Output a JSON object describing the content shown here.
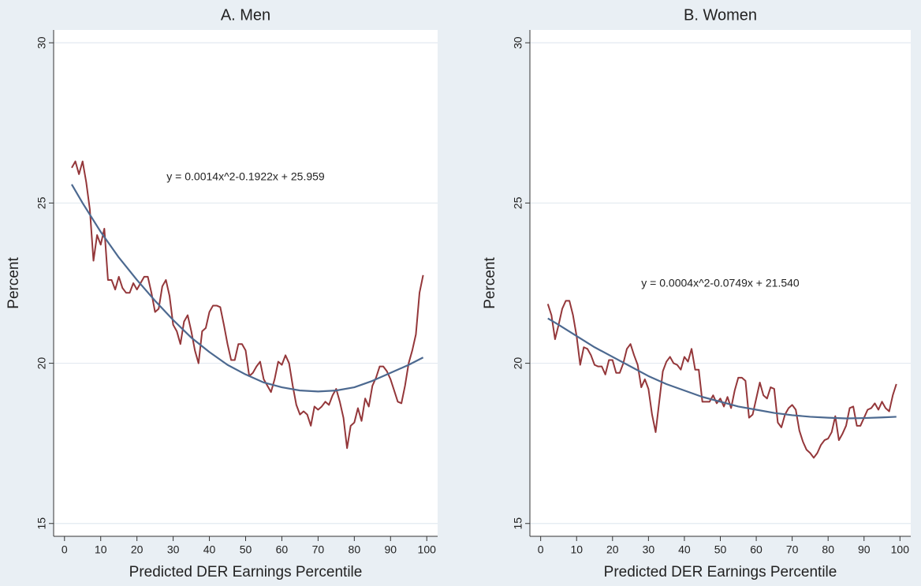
{
  "chart_data": [
    {
      "type": "line",
      "title": "A. Men",
      "xlabel": "Predicted DER Earnings Percentile",
      "ylabel": "Percent",
      "annotation": "y = 0.0014x^2-0.1922x + 25.959",
      "xlim": [
        -3,
        103
      ],
      "xticks": [
        0,
        10,
        20,
        30,
        40,
        50,
        60,
        70,
        80,
        90,
        100
      ],
      "ylim": [
        14.6,
        30.4
      ],
      "yticks": [
        15,
        20,
        25,
        30
      ],
      "grid": true,
      "x": [
        2,
        3,
        4,
        5,
        6,
        7,
        8,
        9,
        10,
        11,
        12,
        13,
        14,
        15,
        16,
        17,
        18,
        19,
        20,
        21,
        22,
        23,
        24,
        25,
        26,
        27,
        28,
        29,
        30,
        31,
        32,
        33,
        34,
        35,
        36,
        37,
        38,
        39,
        40,
        41,
        42,
        43,
        44,
        45,
        46,
        47,
        48,
        49,
        50,
        51,
        52,
        53,
        54,
        55,
        56,
        57,
        58,
        59,
        60,
        61,
        62,
        63,
        64,
        65,
        66,
        67,
        68,
        69,
        70,
        71,
        72,
        73,
        74,
        75,
        76,
        77,
        78,
        79,
        80,
        81,
        82,
        83,
        84,
        85,
        86,
        87,
        88,
        89,
        90,
        91,
        92,
        93,
        94,
        95,
        96,
        97,
        98,
        99
      ],
      "series": [
        {
          "color": "#94373a",
          "values": [
            26.1,
            26.3,
            25.9,
            26.3,
            25.65,
            24.8,
            23.2,
            24.0,
            23.7,
            24.2,
            22.6,
            22.6,
            22.3,
            22.7,
            22.35,
            22.2,
            22.2,
            22.5,
            22.3,
            22.5,
            22.7,
            22.7,
            22.2,
            21.6,
            21.7,
            22.4,
            22.6,
            22.1,
            21.2,
            21.0,
            20.6,
            21.3,
            21.5,
            21.0,
            20.4,
            20.0,
            21.0,
            21.1,
            21.6,
            21.8,
            21.8,
            21.75,
            21.2,
            20.6,
            20.1,
            20.1,
            20.6,
            20.6,
            20.4,
            19.6,
            19.7,
            19.9,
            20.05,
            19.5,
            19.3,
            19.1,
            19.5,
            20.05,
            19.95,
            20.25,
            20.0,
            19.3,
            18.7,
            18.4,
            18.5,
            18.4,
            18.05,
            18.65,
            18.55,
            18.65,
            18.8,
            18.7,
            19.0,
            19.2,
            18.8,
            18.3,
            17.35,
            18.05,
            18.15,
            18.6,
            18.2,
            18.9,
            18.65,
            19.3,
            19.55,
            19.9,
            19.9,
            19.75,
            19.5,
            19.15,
            18.8,
            18.75,
            19.3,
            20.0,
            20.4,
            20.9,
            22.2,
            22.75
          ]
        },
        {
          "color": "#4c6990",
          "x": [
            2,
            5,
            10,
            15,
            20,
            25,
            30,
            35,
            40,
            45,
            50,
            55,
            60,
            65,
            70,
            75,
            80,
            85,
            90,
            95,
            99
          ],
          "values": [
            25.58,
            25.0,
            24.1,
            23.3,
            22.6,
            21.95,
            21.35,
            20.8,
            20.35,
            19.95,
            19.65,
            19.4,
            19.25,
            19.15,
            19.12,
            19.15,
            19.25,
            19.45,
            19.7,
            19.95,
            20.18
          ]
        }
      ]
    },
    {
      "type": "line",
      "title": "B. Women",
      "xlabel": "Predicted DER Earnings Percentile",
      "ylabel": "Percent",
      "annotation": "y = 0.0004x^2-0.0749x + 21.540",
      "xlim": [
        -3,
        103
      ],
      "xticks": [
        0,
        10,
        20,
        30,
        40,
        50,
        60,
        70,
        80,
        90,
        100
      ],
      "ylim": [
        14.6,
        30.4
      ],
      "yticks": [
        15,
        20,
        25,
        30
      ],
      "grid": true,
      "x": [
        2,
        3,
        4,
        5,
        6,
        7,
        8,
        9,
        10,
        11,
        12,
        13,
        14,
        15,
        16,
        17,
        18,
        19,
        20,
        21,
        22,
        23,
        24,
        25,
        26,
        27,
        28,
        29,
        30,
        31,
        32,
        33,
        34,
        35,
        36,
        37,
        38,
        39,
        40,
        41,
        42,
        43,
        44,
        45,
        46,
        47,
        48,
        49,
        50,
        51,
        52,
        53,
        54,
        55,
        56,
        57,
        58,
        59,
        60,
        61,
        62,
        63,
        64,
        65,
        66,
        67,
        68,
        69,
        70,
        71,
        72,
        73,
        74,
        75,
        76,
        77,
        78,
        79,
        80,
        81,
        82,
        83,
        84,
        85,
        86,
        87,
        88,
        89,
        90,
        91,
        92,
        93,
        94,
        95,
        96,
        97,
        98,
        99
      ],
      "series": [
        {
          "color": "#94373a",
          "values": [
            21.85,
            21.5,
            20.75,
            21.2,
            21.7,
            21.95,
            21.95,
            21.5,
            20.85,
            19.95,
            20.5,
            20.45,
            20.25,
            19.95,
            19.9,
            19.9,
            19.65,
            20.1,
            20.1,
            19.7,
            19.7,
            20.0,
            20.45,
            20.6,
            20.25,
            19.95,
            19.25,
            19.5,
            19.2,
            18.4,
            17.85,
            18.8,
            19.75,
            20.05,
            20.2,
            20.0,
            19.95,
            19.8,
            20.2,
            20.05,
            20.45,
            19.8,
            19.8,
            18.8,
            18.8,
            18.8,
            19.0,
            18.75,
            18.9,
            18.65,
            18.95,
            18.6,
            19.15,
            19.55,
            19.55,
            19.45,
            18.3,
            18.4,
            18.9,
            19.4,
            19.0,
            18.9,
            19.25,
            19.2,
            18.15,
            18.0,
            18.4,
            18.6,
            18.7,
            18.55,
            17.9,
            17.55,
            17.3,
            17.2,
            17.05,
            17.2,
            17.45,
            17.6,
            17.65,
            17.85,
            18.35,
            17.6,
            17.8,
            18.05,
            18.6,
            18.65,
            18.05,
            18.05,
            18.3,
            18.55,
            18.6,
            18.75,
            18.55,
            18.8,
            18.6,
            18.5,
            19.0,
            19.35
          ]
        },
        {
          "color": "#4c6990",
          "x": [
            2,
            5,
            10,
            15,
            20,
            25,
            30,
            35,
            40,
            45,
            50,
            55,
            60,
            65,
            70,
            75,
            80,
            85,
            90,
            95,
            99
          ],
          "values": [
            21.4,
            21.2,
            20.85,
            20.5,
            20.2,
            19.9,
            19.6,
            19.35,
            19.15,
            18.95,
            18.8,
            18.65,
            18.55,
            18.45,
            18.38,
            18.33,
            18.3,
            18.28,
            18.29,
            18.31,
            18.33
          ]
        }
      ]
    }
  ]
}
